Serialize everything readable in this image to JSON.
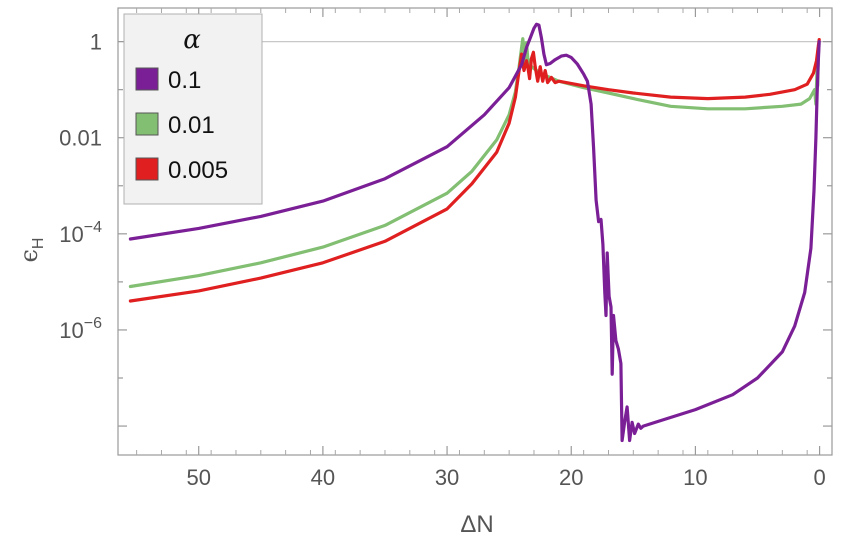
{
  "chart_data": {
    "type": "line",
    "xlabel": "ΔN",
    "ylabel": "ϵ",
    "ylabel_sub": "H",
    "x_reversed": true,
    "xlim": [
      56.5,
      -1
    ],
    "ylim": [
      2.5e-09,
      5
    ],
    "y_scale": "log",
    "grid": false,
    "reference_line_y": 1,
    "x_ticks": [
      50,
      40,
      30,
      20,
      10,
      0
    ],
    "x_tick_labels": [
      "50",
      "40",
      "30",
      "20",
      "10",
      "0"
    ],
    "y_ticks": [
      {
        "value": 1,
        "base": "1",
        "exp": ""
      },
      {
        "value": 0.01,
        "base": "0.01",
        "exp": ""
      },
      {
        "value": 0.0001,
        "base": "10",
        "exp": "−4"
      },
      {
        "value": 1e-06,
        "base": "10",
        "exp": "−6"
      }
    ],
    "legend": {
      "title": "α",
      "position": "top-left"
    },
    "series": [
      {
        "name": "0.1",
        "color": "#7b1f96",
        "points": [
          [
            55.5,
            7.8e-05
          ],
          [
            50,
            0.00013
          ],
          [
            45,
            0.00023
          ],
          [
            40,
            0.00048
          ],
          [
            35,
            0.0014
          ],
          [
            30,
            0.0065
          ],
          [
            27,
            0.03
          ],
          [
            25,
            0.11
          ],
          [
            24,
            0.33
          ],
          [
            23.6,
            0.75
          ],
          [
            23.3,
            1.2
          ],
          [
            23,
            1.9
          ],
          [
            22.8,
            2.3
          ],
          [
            22.6,
            2.2
          ],
          [
            22.4,
            1.2
          ],
          [
            22.2,
            0.55
          ],
          [
            22,
            0.33
          ],
          [
            21.7,
            0.35
          ],
          [
            21.3,
            0.42
          ],
          [
            20.8,
            0.5
          ],
          [
            20.4,
            0.52
          ],
          [
            20,
            0.47
          ],
          [
            19.5,
            0.34
          ],
          [
            19,
            0.21
          ],
          [
            18.7,
            0.15
          ],
          [
            18.4,
            0.05
          ],
          [
            18.2,
            0.006
          ],
          [
            18,
            0.0005
          ],
          [
            17.8,
            0.00018
          ],
          [
            17.6,
            0.0002
          ],
          [
            17.45,
            6e-05
          ],
          [
            17.3,
            6e-06
          ],
          [
            17.2,
            2e-06
          ],
          [
            17.1,
            4e-05
          ],
          [
            16.95,
            5e-06
          ],
          [
            16.8,
            3e-06
          ],
          [
            16.7,
            1.2e-07
          ],
          [
            16.6,
            2e-06
          ],
          [
            16.4,
            6e-07
          ],
          [
            16.2,
            4e-07
          ],
          [
            16.0,
            2e-07
          ],
          [
            15.9,
            5e-09
          ],
          [
            15.7,
            1.2e-08
          ],
          [
            15.5,
            2.5e-08
          ],
          [
            15.3,
            5e-09
          ],
          [
            15.1,
            1.2e-08
          ],
          [
            14.9,
            7e-09
          ],
          [
            14.6,
            1.1e-08
          ],
          [
            14.4,
            9e-09
          ],
          [
            14.2,
            1e-08
          ],
          [
            13,
            1.25e-08
          ],
          [
            10,
            2.2e-08
          ],
          [
            7,
            4.5e-08
          ],
          [
            5,
            1e-07
          ],
          [
            3,
            3.5e-07
          ],
          [
            2,
            1.2e-06
          ],
          [
            1.2,
            6e-06
          ],
          [
            0.7,
            5e-05
          ],
          [
            0.45,
            0.0008
          ],
          [
            0.3,
            0.01
          ],
          [
            0.2,
            0.08
          ],
          [
            0.1,
            0.4
          ],
          [
            0.03,
            1.0
          ]
        ]
      },
      {
        "name": "0.01",
        "color": "#82bf72",
        "points": [
          [
            55.5,
            8e-06
          ],
          [
            50,
            1.35e-05
          ],
          [
            45,
            2.5e-05
          ],
          [
            40,
            5.3e-05
          ],
          [
            35,
            0.00015
          ],
          [
            30,
            0.0007
          ],
          [
            28,
            0.002
          ],
          [
            26,
            0.009
          ],
          [
            25,
            0.03
          ],
          [
            24.5,
            0.09
          ],
          [
            24.2,
            0.3
          ],
          [
            24,
            0.75
          ],
          [
            23.9,
            1.15
          ],
          [
            23.8,
            0.7
          ],
          [
            23.7,
            0.35
          ],
          [
            23.6,
            0.95
          ],
          [
            23.5,
            0.45
          ],
          [
            23.2,
            0.3
          ],
          [
            22.5,
            0.22
          ],
          [
            21,
            0.15
          ],
          [
            19,
            0.11
          ],
          [
            17,
            0.085
          ],
          [
            15,
            0.065
          ],
          [
            12,
            0.045
          ],
          [
            9,
            0.04
          ],
          [
            6,
            0.04
          ],
          [
            3,
            0.045
          ],
          [
            1.5,
            0.05
          ],
          [
            0.8,
            0.065
          ],
          [
            0.4,
            0.1
          ],
          [
            0.3,
            0.05
          ],
          [
            0.2,
            0.3
          ],
          [
            0.15,
            0.12
          ],
          [
            0.1,
            0.5
          ],
          [
            0.05,
            0.9
          ]
        ]
      },
      {
        "name": "0.005",
        "color": "#e02020",
        "points": [
          [
            55.5,
            4e-06
          ],
          [
            50,
            6.5e-06
          ],
          [
            45,
            1.2e-05
          ],
          [
            40,
            2.5e-05
          ],
          [
            35,
            7e-05
          ],
          [
            30,
            0.00033
          ],
          [
            28,
            0.0011
          ],
          [
            26,
            0.005
          ],
          [
            25,
            0.02
          ],
          [
            24.5,
            0.07
          ],
          [
            24.2,
            0.25
          ],
          [
            24,
            0.55
          ],
          [
            23.9,
            0.35
          ],
          [
            23.8,
            0.25
          ],
          [
            23.6,
            0.4
          ],
          [
            23.5,
            0.3
          ],
          [
            23.35,
            0.17
          ],
          [
            23.2,
            0.45
          ],
          [
            23.05,
            0.6
          ],
          [
            22.9,
            0.3
          ],
          [
            22.7,
            0.15
          ],
          [
            22.5,
            0.3
          ],
          [
            22.3,
            0.15
          ],
          [
            22.1,
            0.25
          ],
          [
            21.9,
            0.14
          ],
          [
            21.6,
            0.18
          ],
          [
            21.3,
            0.14
          ],
          [
            21,
            0.15
          ],
          [
            19,
            0.12
          ],
          [
            17,
            0.1
          ],
          [
            15,
            0.085
          ],
          [
            12,
            0.07
          ],
          [
            9,
            0.065
          ],
          [
            6,
            0.07
          ],
          [
            4,
            0.08
          ],
          [
            2,
            0.1
          ],
          [
            1,
            0.13
          ],
          [
            0.5,
            0.22
          ],
          [
            0.25,
            0.4
          ],
          [
            0.1,
            0.8
          ],
          [
            0.03,
            1.1
          ]
        ]
      }
    ]
  }
}
